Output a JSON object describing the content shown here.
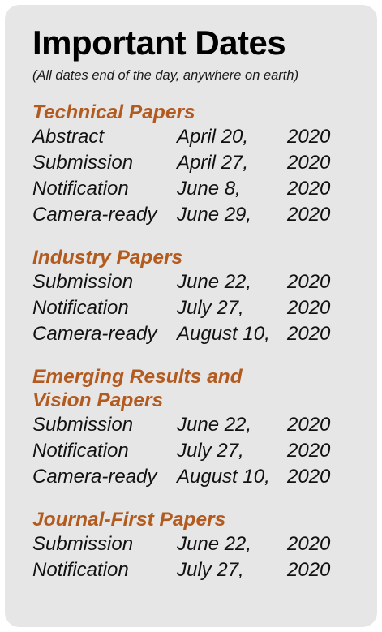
{
  "title": "Important Dates",
  "subtitle": "(All dates end of the day, anywhere on earth)",
  "sections": [
    {
      "title_lines": [
        "Technical Papers"
      ],
      "rows": [
        {
          "label": "Abstract",
          "date": "April 20,",
          "year": "2020"
        },
        {
          "label": "Submission",
          "date": "April 27,",
          "year": "2020"
        },
        {
          "label": "Notification",
          "date": "June 8,",
          "year": "2020"
        },
        {
          "label": "Camera-ready",
          "date": "June 29,",
          "year": "2020"
        }
      ]
    },
    {
      "title_lines": [
        "Industry Papers"
      ],
      "rows": [
        {
          "label": "Submission",
          "date": "June 22,",
          "year": "2020"
        },
        {
          "label": "Notification",
          "date": "July 27,",
          "year": "2020"
        },
        {
          "label": "Camera-ready",
          "date": "August 10,",
          "year": "2020"
        }
      ]
    },
    {
      "title_lines": [
        "Emerging Results and",
        "Vision Papers"
      ],
      "rows": [
        {
          "label": "Submission",
          "date": "June 22,",
          "year": "2020"
        },
        {
          "label": "Notification",
          "date": "July 27,",
          "year": "2020"
        },
        {
          "label": "Camera-ready",
          "date": "August 10,",
          "year": "2020"
        }
      ]
    },
    {
      "title_lines": [
        "Journal-First Papers"
      ],
      "rows": [
        {
          "label": "Submission",
          "date": "June 22,",
          "year": "2020"
        },
        {
          "label": "Notification",
          "date": "July 27,",
          "year": "2020"
        }
      ]
    }
  ]
}
